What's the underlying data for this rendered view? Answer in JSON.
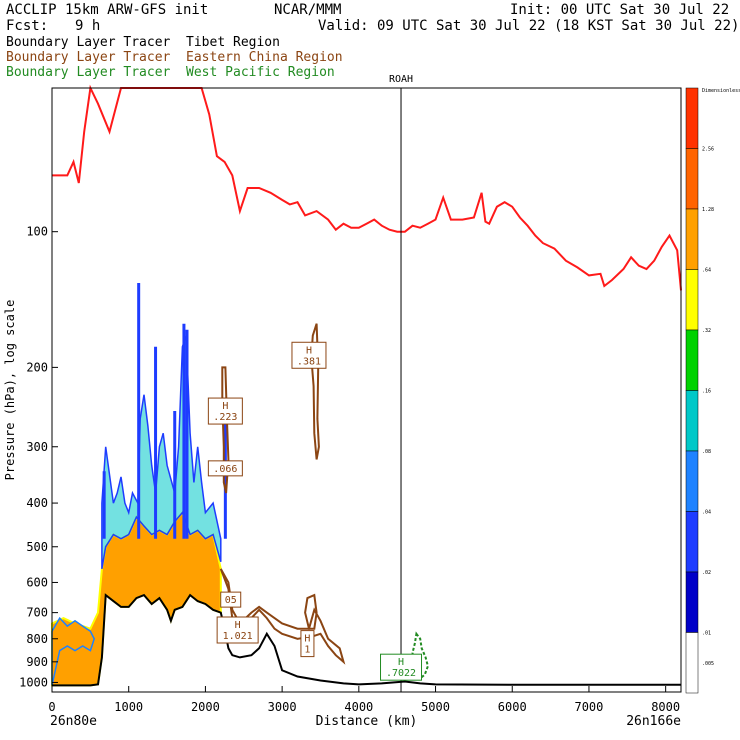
{
  "header": {
    "model": "ACCLIP 15km ARW-GFS init",
    "org": "NCAR/MMM",
    "init": "Init: 00 UTC Sat 30 Jul 22",
    "fcst_label": "Fcst:",
    "fcst_value": "9 h",
    "valid": "Valid: 09 UTC Sat 30 Jul 22 (18 KST Sat 30 Jul 22)"
  },
  "legend_lines": [
    {
      "prefix": "Boundary Layer Tracer",
      "region": "Tibet Region",
      "color": "#000000"
    },
    {
      "prefix": "Boundary Layer Tracer",
      "region": "Eastern China Region",
      "color": "#8B4513"
    },
    {
      "prefix": "Boundary Layer Tracer",
      "region": "West Pacific Region",
      "color": "#228B22"
    }
  ],
  "chart_data": {
    "type": "cross-section",
    "xlabel": "Distance (km)",
    "ylabel": "Pressure (hPa), log scale",
    "xlim": [
      0,
      8200
    ],
    "ylim_hpa": [
      1050,
      48
    ],
    "y_scale": "log",
    "x_ticks": [
      0,
      1000,
      2000,
      3000,
      4000,
      5000,
      6000,
      7000,
      8000
    ],
    "y_ticks": [
      100,
      200,
      300,
      400,
      500,
      600,
      700,
      800,
      900,
      1000
    ],
    "left_endpoint": "26n80e",
    "right_endpoint": "26n166e",
    "vertical_marker": {
      "label": "ROAH",
      "x_km": 4550
    },
    "tropopause_red": [
      [
        0,
        75
      ],
      [
        200,
        75
      ],
      [
        280,
        70
      ],
      [
        350,
        78
      ],
      [
        420,
        60
      ],
      [
        500,
        48
      ],
      [
        600,
        52
      ],
      [
        750,
        60
      ],
      [
        900,
        48
      ],
      [
        1050,
        48
      ],
      [
        1150,
        48
      ],
      [
        1500,
        48
      ],
      [
        1700,
        48
      ],
      [
        1950,
        48
      ],
      [
        2050,
        55
      ],
      [
        2150,
        68
      ],
      [
        2250,
        70
      ],
      [
        2350,
        75
      ],
      [
        2450,
        90
      ],
      [
        2550,
        80
      ],
      [
        2700,
        80
      ],
      [
        2850,
        82
      ],
      [
        3000,
        85
      ],
      [
        3100,
        87
      ],
      [
        3200,
        86
      ],
      [
        3300,
        92
      ],
      [
        3450,
        90
      ],
      [
        3600,
        94
      ],
      [
        3700,
        99
      ],
      [
        3800,
        96
      ],
      [
        3900,
        98
      ],
      [
        4000,
        98
      ],
      [
        4100,
        96
      ],
      [
        4200,
        94
      ],
      [
        4300,
        97
      ],
      [
        4400,
        99
      ],
      [
        4500,
        100
      ],
      [
        4600,
        100
      ],
      [
        4700,
        97
      ],
      [
        4800,
        98
      ],
      [
        4900,
        96
      ],
      [
        5000,
        94
      ],
      [
        5100,
        84
      ],
      [
        5200,
        94
      ],
      [
        5350,
        94
      ],
      [
        5500,
        93
      ],
      [
        5600,
        82
      ],
      [
        5650,
        95
      ],
      [
        5700,
        96
      ],
      [
        5800,
        88
      ],
      [
        5900,
        86
      ],
      [
        6000,
        88
      ],
      [
        6100,
        93
      ],
      [
        6200,
        97
      ],
      [
        6300,
        102
      ],
      [
        6400,
        106
      ],
      [
        6550,
        109
      ],
      [
        6700,
        116
      ],
      [
        6850,
        120
      ],
      [
        7000,
        125
      ],
      [
        7150,
        124
      ],
      [
        7200,
        132
      ],
      [
        7300,
        128
      ],
      [
        7450,
        121
      ],
      [
        7550,
        114
      ],
      [
        7650,
        119
      ],
      [
        7750,
        121
      ],
      [
        7850,
        116
      ],
      [
        7950,
        108
      ],
      [
        8050,
        102
      ],
      [
        8150,
        110
      ],
      [
        8200,
        135
      ]
    ],
    "terrain_black": [
      [
        0,
        1015
      ],
      [
        200,
        1015
      ],
      [
        500,
        1015
      ],
      [
        600,
        1010
      ],
      [
        650,
        880
      ],
      [
        700,
        640
      ],
      [
        800,
        660
      ],
      [
        900,
        680
      ],
      [
        1000,
        680
      ],
      [
        1100,
        650
      ],
      [
        1200,
        640
      ],
      [
        1300,
        670
      ],
      [
        1400,
        650
      ],
      [
        1500,
        690
      ],
      [
        1550,
        730
      ],
      [
        1600,
        690
      ],
      [
        1700,
        680
      ],
      [
        1800,
        640
      ],
      [
        1900,
        660
      ],
      [
        2000,
        670
      ],
      [
        2100,
        690
      ],
      [
        2200,
        700
      ],
      [
        2250,
        760
      ],
      [
        2300,
        840
      ],
      [
        2350,
        870
      ],
      [
        2450,
        880
      ],
      [
        2600,
        870
      ],
      [
        2700,
        840
      ],
      [
        2800,
        780
      ],
      [
        2900,
        830
      ],
      [
        3000,
        940
      ],
      [
        3200,
        970
      ],
      [
        3500,
        990
      ],
      [
        3800,
        1005
      ],
      [
        4000,
        1010
      ],
      [
        4300,
        1005
      ],
      [
        4600,
        995
      ],
      [
        4800,
        1005
      ],
      [
        5000,
        1010
      ],
      [
        6000,
        1012
      ],
      [
        7000,
        1012
      ],
      [
        8200,
        1012
      ]
    ],
    "colorbar_levels": [
      ".005",
      ".01",
      ".02",
      ".04",
      ".08",
      ".16",
      ".32",
      ".64",
      "1.28",
      "2.56",
      "Dimensionless"
    ],
    "colorbar_colors": [
      "#ffffff",
      "#0000c8",
      "#1e3cff",
      "#1e82ff",
      "#00c8c8",
      "#00d200",
      "#ffff00",
      "#ffa000",
      "#ff6400",
      "#ff3200"
    ],
    "maxima_labels": [
      {
        "tag": "H",
        "value": ".223",
        "x_km": 2260,
        "p": 250,
        "color": "#8B4513"
      },
      {
        "tag": "",
        "value": ".066",
        "x_km": 2260,
        "p": 335,
        "color": "#8B4513"
      },
      {
        "tag": "H",
        "value": ".381",
        "x_km": 3350,
        "p": 188,
        "color": "#8B4513"
      },
      {
        "tag": "",
        "value": "05",
        "x_km": 2330,
        "p": 655,
        "color": "#8B4513"
      },
      {
        "tag": "H",
        "value": "1.021",
        "x_km": 2420,
        "p": 765,
        "color": "#8B4513"
      },
      {
        "tag": "H",
        "value": "1",
        "x_km": 3330,
        "p": 820,
        "color": "#8B4513"
      },
      {
        "tag": "H",
        "value": ".7022",
        "x_km": 4550,
        "p": 925,
        "color": "#228B22"
      }
    ]
  }
}
